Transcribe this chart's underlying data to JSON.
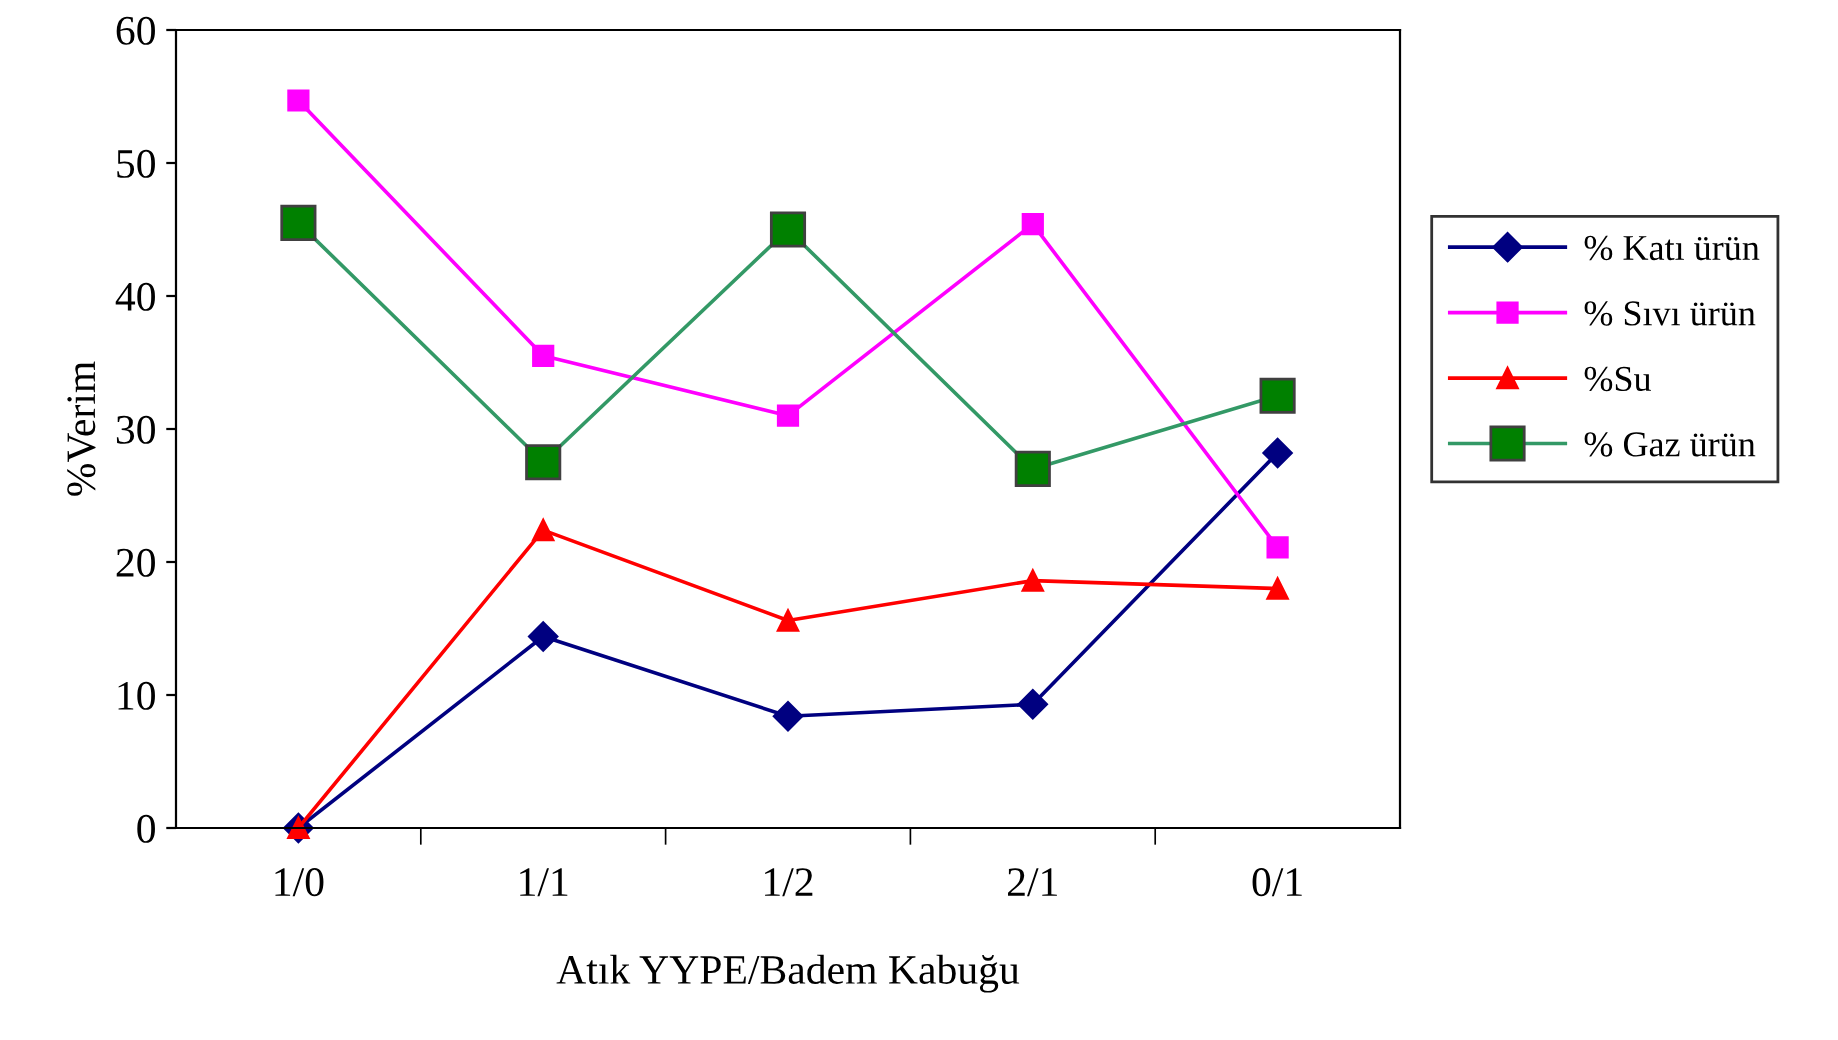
{
  "chart_data": {
    "type": "line",
    "xlabel": "Atık YYPE/Badem Kabuğu",
    "ylabel": "%Verim",
    "categories": [
      "1/0",
      "1/1",
      "1/2",
      "2/1",
      "0/1"
    ],
    "ylim": [
      0,
      60
    ],
    "yticks": [
      0,
      10,
      20,
      30,
      40,
      50,
      60
    ],
    "grid": false,
    "legend": "right",
    "series": [
      {
        "name": "% Katı ürün",
        "color": "#000080",
        "marker": "diamond",
        "values": [
          0,
          14.4,
          8.4,
          9.3,
          28.2
        ]
      },
      {
        "name": "% Sıvı ürün",
        "color": "#ff00ff",
        "marker": "square",
        "values": [
          54.7,
          35.5,
          31,
          45.4,
          21.1
        ]
      },
      {
        "name": "%Su",
        "color": "#ff0000",
        "marker": "triangle",
        "values": [
          0,
          22.4,
          15.6,
          18.6,
          18
        ]
      },
      {
        "name": "% Gaz ürün",
        "color": "#339966",
        "marker": "square",
        "values": [
          45.5,
          27.5,
          45,
          27,
          32.5
        ]
      }
    ]
  }
}
